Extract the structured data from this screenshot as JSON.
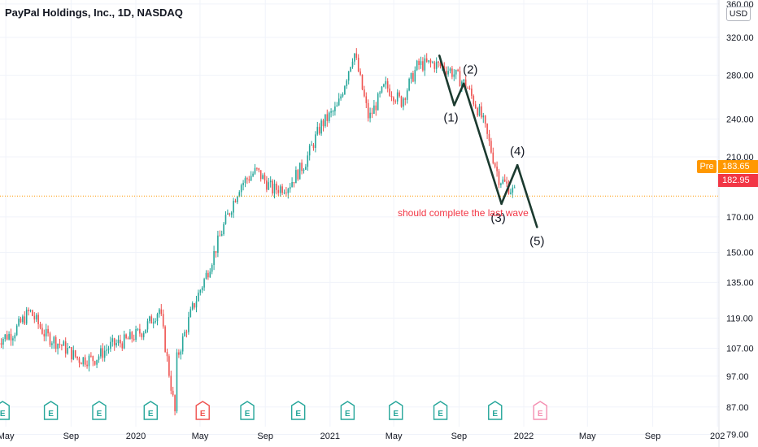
{
  "header": {
    "title": "PayPal Holdings, Inc., 1D, NASDAQ",
    "currency": "USD"
  },
  "price_labels": {
    "pre_tag": "Pre",
    "pre_price": "183.65",
    "last_price": "182.95"
  },
  "colors": {
    "up": "#26a69a",
    "down": "#ef5350",
    "wave_line": "#1b3a2f",
    "annotation": "#f23645",
    "price_line": "#ff9800",
    "earnings_past": "#26a69a",
    "earnings_future": "#f48fb1"
  },
  "chart_data": {
    "type": "line",
    "y_scale": "log",
    "ylim": [
      76,
      365
    ],
    "y_ticks": [
      "360.00",
      "320.00",
      "280.00",
      "240.00",
      "210.00",
      "170.00",
      "150.00",
      "135.00",
      "119.00",
      "107.00",
      "97.00",
      "87.00",
      "79.00"
    ],
    "x_ticks": [
      "May",
      "Sep",
      "2020",
      "May",
      "Sep",
      "2021",
      "May",
      "Sep",
      "2022",
      "May",
      "Sep",
      "202"
    ],
    "series": [
      {
        "x": [
          "2019-04",
          "2019-05",
          "2019-06",
          "2019-07",
          "2019-08",
          "2019-09",
          "2019-10",
          "2019-11",
          "2019-12",
          "2020-01",
          "2020-02",
          "2020-03",
          "2020-03",
          "2020-04",
          "2020-05",
          "2020-06",
          "2020-07",
          "2020-08",
          "2020-09",
          "2020-10",
          "2020-11",
          "2020-12",
          "2021-01",
          "2021-02",
          "2021-03",
          "2021-04",
          "2021-05",
          "2021-06",
          "2021-07",
          "2021-08",
          "2021-09",
          "2021-10",
          "2021-11",
          "2021-12"
        ],
        "values": [
          110,
          113,
          122,
          112,
          108,
          103,
          103,
          108,
          110,
          114,
          123,
          85,
          101,
          122,
          140,
          165,
          190,
          200,
          187,
          190,
          206,
          235,
          250,
          305,
          240,
          270,
          255,
          290,
          292,
          285,
          270,
          240,
          195,
          185
        ]
      }
    ],
    "earnings_markers": [
      "E",
      "E",
      "E",
      "E",
      "E",
      "E",
      "E",
      "E",
      "E",
      "E",
      "E",
      "E"
    ],
    "annotations": {
      "wave_labels": [
        "(1)",
        "(2)",
        "(3)",
        "(4)",
        "(5)"
      ],
      "wave_points": [
        {
          "x": "2021-07-26",
          "y": 300
        },
        {
          "x": "2021-08-23",
          "y": 252
        },
        {
          "x": "2021-09-10",
          "y": 272
        },
        {
          "x": "2021-11-20",
          "y": 178
        },
        {
          "x": "2021-12-20",
          "y": 204
        },
        {
          "x": "2022-01-26",
          "y": 164
        }
      ],
      "note": "should complete the last wave"
    }
  }
}
